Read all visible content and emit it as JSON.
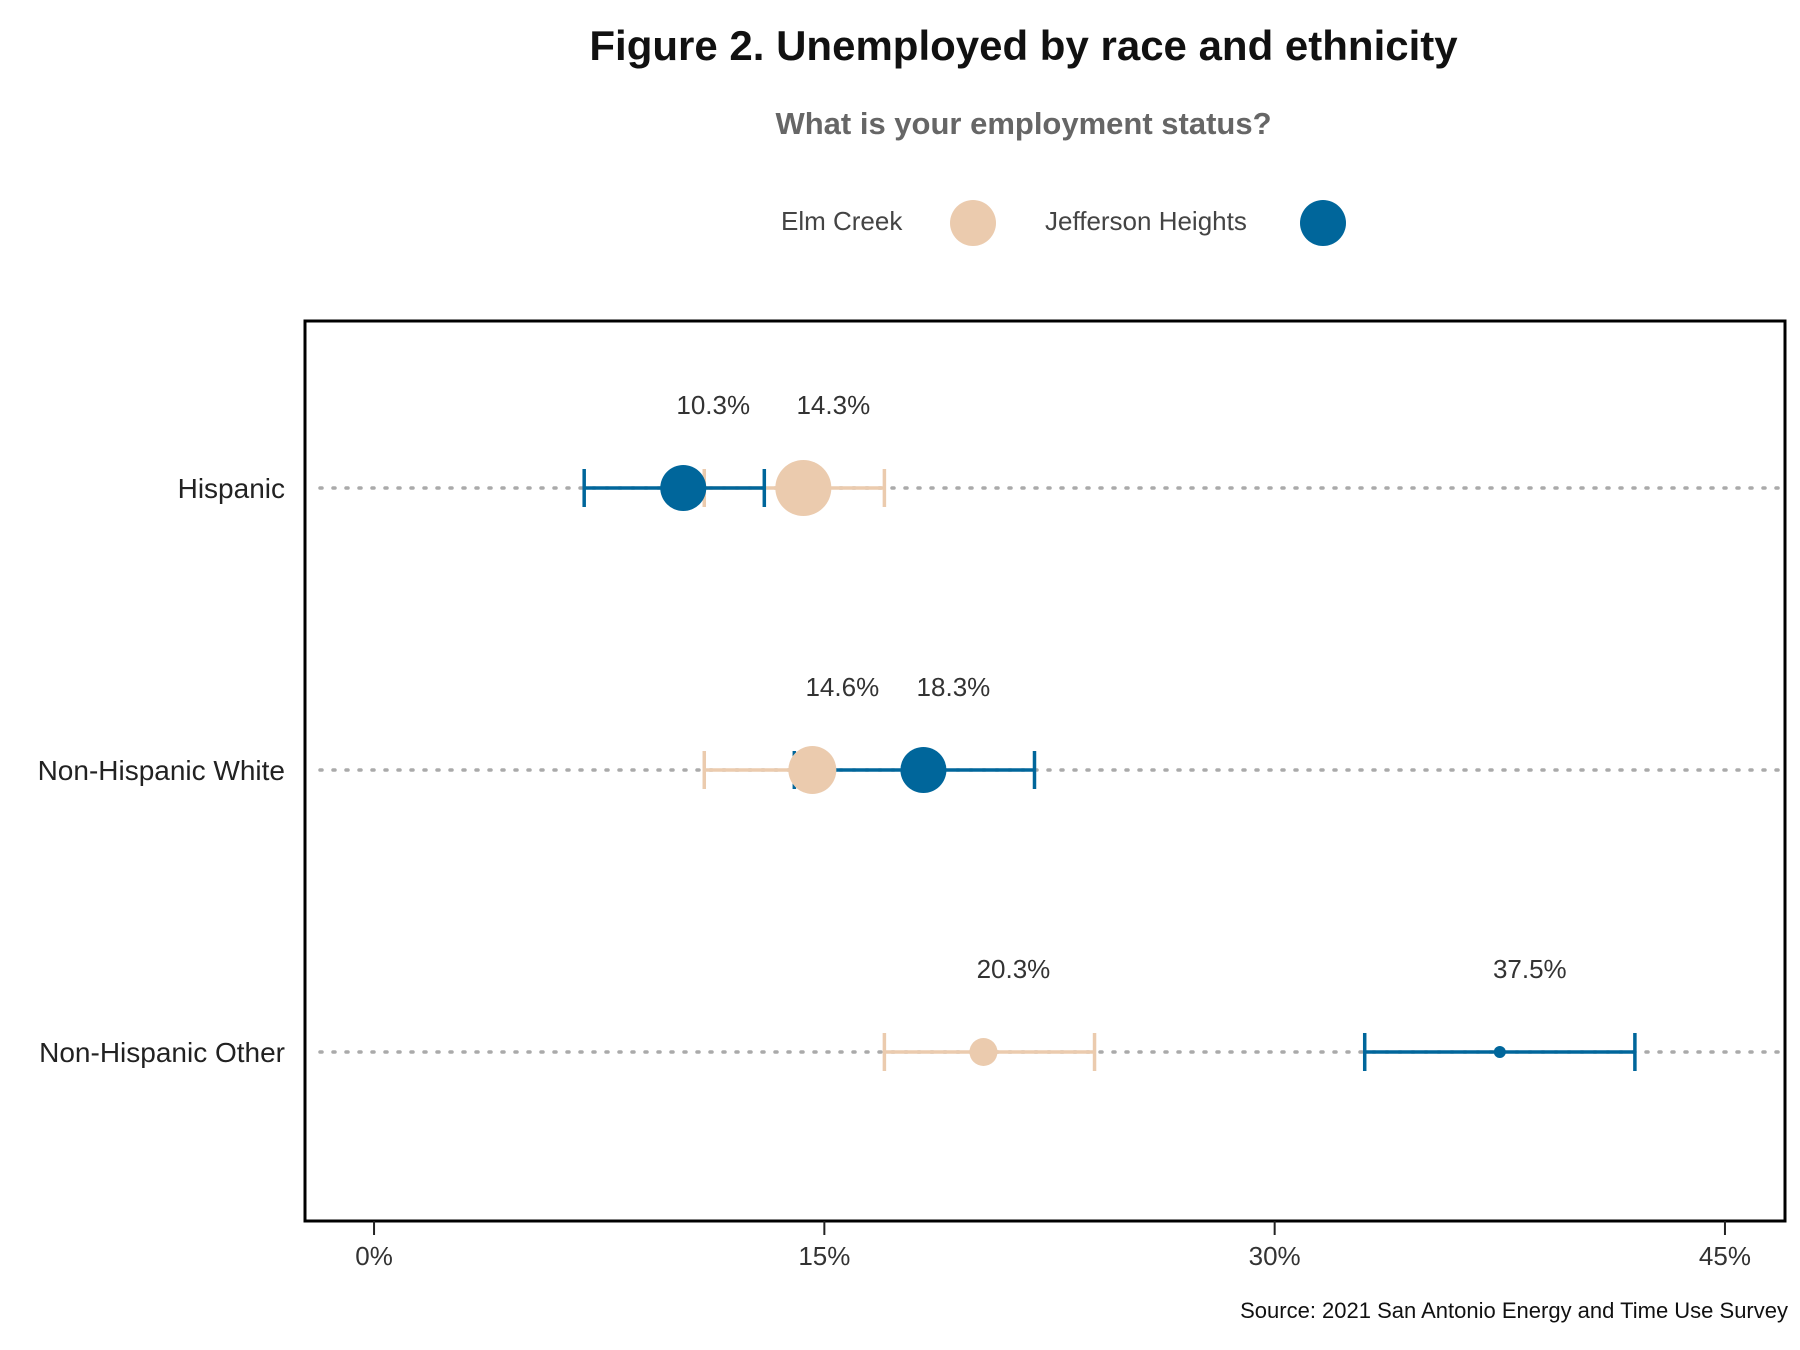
{
  "title": "Figure 2. Unemployed by race and ethnicity",
  "subtitle": "What is your employment status?",
  "legend": [
    {
      "label": "Elm Creek",
      "color": "#EBCBAE"
    },
    {
      "label": "Jefferson Heights",
      "color": "#00669B"
    }
  ],
  "source": "Source: 2021 San Antonio Energy and Time Use Survey",
  "chart_data": {
    "type": "scatter",
    "title": "Figure 2. Unemployed by race and ethnicity",
    "subtitle": "What is your employment status?",
    "xlabel": "",
    "ylabel": "",
    "xlim": [
      -2.3,
      47
    ],
    "x_ticks": [
      "0%",
      "15%",
      "30%",
      "45%"
    ],
    "x_tick_values": [
      0,
      15,
      30,
      45
    ],
    "grid": "dotted horizontal at each category",
    "legend_position": "top",
    "categories": [
      "Hispanic",
      "Non-Hispanic White",
      "Non-Hispanic Other"
    ],
    "series": [
      {
        "name": "Elm Creek",
        "color": "#EBCBAE",
        "values": [
          14.3,
          14.6,
          20.3
        ],
        "ci_low": [
          11.0,
          11.0,
          17.0
        ],
        "ci_high": [
          17.0,
          14.0,
          24.0
        ],
        "labels": [
          "14.3%",
          "14.6%",
          "20.3%"
        ]
      },
      {
        "name": "Jefferson Heights",
        "color": "#00669B",
        "values": [
          10.3,
          18.3,
          37.5
        ],
        "ci_low": [
          7.0,
          14.0,
          33.0
        ],
        "ci_high": [
          13.0,
          22.0,
          42.0
        ],
        "labels": [
          "10.3%",
          "18.3%",
          "37.5%"
        ]
      }
    ]
  }
}
